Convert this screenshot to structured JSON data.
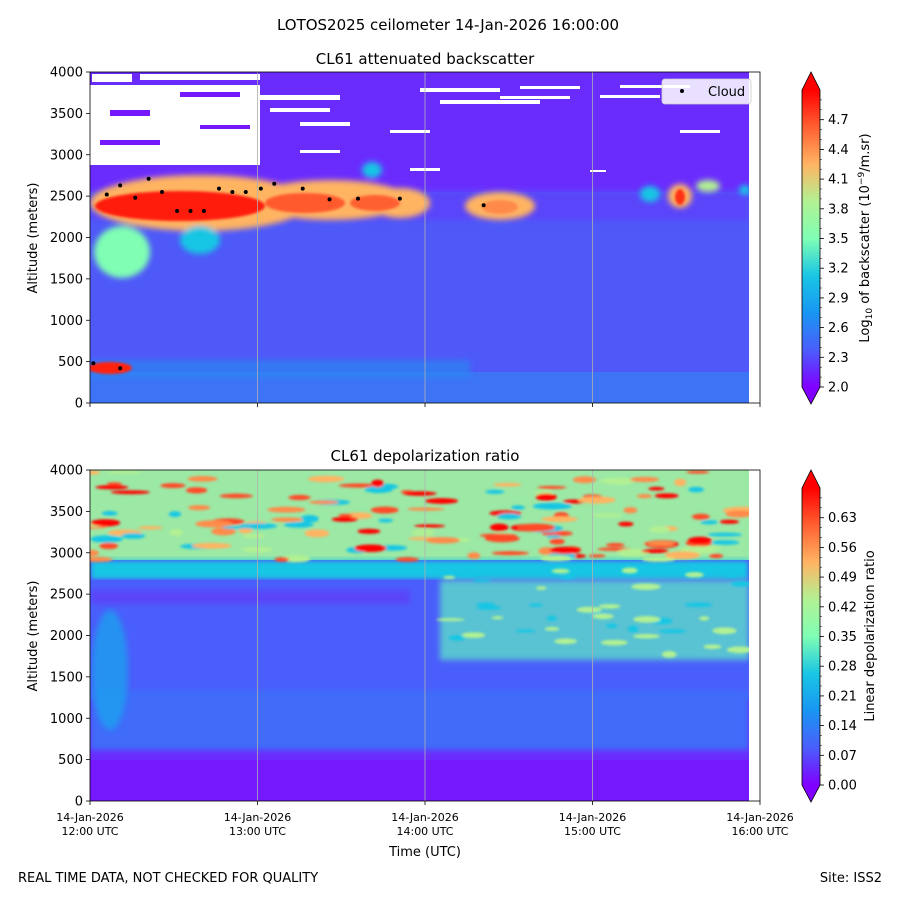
{
  "figure_title": "LOTOS2025 ceilometer 14-Jan-2026 16:00:00",
  "footer": {
    "disclaimer": "REAL TIME DATA, NOT CHECKED FOR QUALITY",
    "site": "Site: ISS2"
  },
  "chart_data": [
    {
      "type": "heatmap",
      "title": "CL61 attenuated backscatter",
      "xlabel": "Time (UTC)",
      "ylabel": "Altitude (meters)",
      "xlim": [
        12.0,
        16.0
      ],
      "ylim": [
        0,
        4000
      ],
      "x_ticks": [
        12.0,
        13.0,
        14.0,
        15.0,
        16.0
      ],
      "x_tick_labels": [
        [
          "14-Jan-2026",
          "12:00 UTC"
        ],
        [
          "14-Jan-2026",
          "13:00 UTC"
        ],
        [
          "14-Jan-2026",
          "14:00 UTC"
        ],
        [
          "14-Jan-2026",
          "15:00 UTC"
        ],
        [
          "14-Jan-2026",
          "16:00 UTC"
        ]
      ],
      "y_ticks": [
        0,
        500,
        1000,
        1500,
        2000,
        2500,
        3000,
        3500,
        4000
      ],
      "y_tick_labels": [
        "0",
        "500",
        "1000",
        "1500",
        "2000",
        "2500",
        "3000",
        "3500",
        "4000"
      ],
      "vertical_grid": true,
      "colorbar": {
        "label_prefix": "Log",
        "label_sub": "10",
        "label_mid": " of backscatter (10",
        "label_sup": "−9",
        "label_suffix": "/m.sr)",
        "min": 2.0,
        "max": 5.0,
        "extend": "both",
        "colormap": "rainbow",
        "ticks": [
          2.0,
          2.3,
          2.6,
          2.9,
          3.2,
          3.5,
          3.8,
          4.1,
          4.4,
          4.7
        ],
        "tick_labels": [
          "2.0",
          "2.3",
          "2.6",
          "2.9",
          "3.2",
          "3.5",
          "3.8",
          "4.1",
          "4.4",
          "4.7"
        ]
      },
      "legend": {
        "label": "Cloud",
        "placement": "top-right"
      },
      "cloud_points": [
        {
          "t": 12.02,
          "alt": 480
        },
        {
          "t": 12.1,
          "alt": 2520
        },
        {
          "t": 12.18,
          "alt": 2630
        },
        {
          "t": 12.27,
          "alt": 2480
        },
        {
          "t": 12.35,
          "alt": 2710
        },
        {
          "t": 12.43,
          "alt": 2550
        },
        {
          "t": 12.52,
          "alt": 2320
        },
        {
          "t": 12.6,
          "alt": 2320
        },
        {
          "t": 12.68,
          "alt": 2320
        },
        {
          "t": 12.77,
          "alt": 2590
        },
        {
          "t": 12.85,
          "alt": 2550
        },
        {
          "t": 12.93,
          "alt": 2550
        },
        {
          "t": 13.02,
          "alt": 2590
        },
        {
          "t": 13.1,
          "alt": 2650
        },
        {
          "t": 13.27,
          "alt": 2590
        },
        {
          "t": 13.43,
          "alt": 2460
        },
        {
          "t": 13.6,
          "alt": 2470
        },
        {
          "t": 13.85,
          "alt": 2470
        },
        {
          "t": 14.35,
          "alt": 2390
        },
        {
          "t": 12.18,
          "alt": 420
        }
      ]
    },
    {
      "type": "heatmap",
      "title": "CL61 depolarization ratio",
      "xlabel": "Time (UTC)",
      "ylabel": "Altitude (meters)",
      "xlim": [
        12.0,
        16.0
      ],
      "ylim": [
        0,
        4000
      ],
      "x_ticks": [
        12.0,
        13.0,
        14.0,
        15.0,
        16.0
      ],
      "x_tick_labels": [
        [
          "14-Jan-2026",
          "12:00 UTC"
        ],
        [
          "14-Jan-2026",
          "13:00 UTC"
        ],
        [
          "14-Jan-2026",
          "14:00 UTC"
        ],
        [
          "14-Jan-2026",
          "15:00 UTC"
        ],
        [
          "14-Jan-2026",
          "16:00 UTC"
        ]
      ],
      "y_ticks": [
        0,
        500,
        1000,
        1500,
        2000,
        2500,
        3000,
        3500,
        4000
      ],
      "y_tick_labels": [
        "0",
        "500",
        "1000",
        "1500",
        "2000",
        "2500",
        "3000",
        "3500",
        "4000"
      ],
      "vertical_grid": true,
      "colorbar": {
        "label": "Linear depolarization ratio",
        "min": 0.0,
        "max": 0.7,
        "extend": "both",
        "colormap": "rainbow",
        "ticks": [
          0.0,
          0.07,
          0.14,
          0.21,
          0.28,
          0.35,
          0.42,
          0.49,
          0.56,
          0.63
        ],
        "tick_labels": [
          "0.00",
          "0.07",
          "0.14",
          "0.21",
          "0.28",
          "0.35",
          "0.42",
          "0.49",
          "0.56",
          "0.63"
        ]
      }
    }
  ]
}
